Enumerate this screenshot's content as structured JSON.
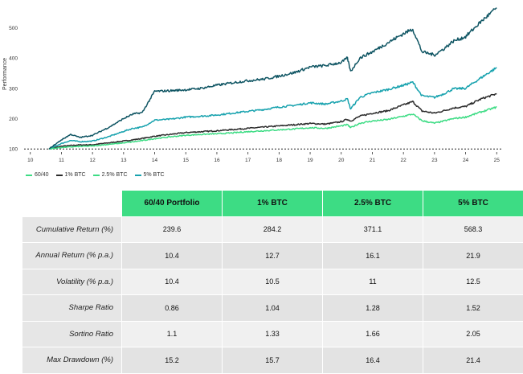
{
  "colors": {
    "header_bg": "#3ddc84",
    "row_odd_bg": "#f0f0f0",
    "row_even_bg": "#e3e3e3",
    "label_bg": "#e6e6e6",
    "baseline": "#222222"
  },
  "chart_data": {
    "type": "line",
    "ylabel": "Performance",
    "xlabel": "",
    "x_ticks": [
      "10",
      "11",
      "12",
      "13",
      "14",
      "15",
      "16",
      "17",
      "18",
      "19",
      "20",
      "21",
      "22",
      "23",
      "24",
      "25"
    ],
    "y_ticks": [
      100,
      200,
      300,
      400,
      500
    ],
    "xlim": [
      9.8,
      25.2
    ],
    "ylim": [
      90,
      575
    ],
    "baseline": 100,
    "grid": false,
    "legend_position": "bottom-left",
    "series": [
      {
        "name": "60/40",
        "color": "#2b2b2b",
        "points": [
          [
            10.6,
            100
          ],
          [
            11,
            109
          ],
          [
            11.5,
            113
          ],
          [
            12,
            114
          ],
          [
            12.5,
            120
          ],
          [
            13,
            126
          ],
          [
            13.5,
            133
          ],
          [
            14,
            142
          ],
          [
            14.5,
            148
          ],
          [
            15,
            154
          ],
          [
            15.5,
            157
          ],
          [
            16,
            160
          ],
          [
            16.5,
            164
          ],
          [
            17,
            168
          ],
          [
            17.5,
            172
          ],
          [
            18,
            176
          ],
          [
            18.5,
            180
          ],
          [
            19,
            184
          ],
          [
            19.5,
            182
          ],
          [
            20,
            190
          ],
          [
            20.2,
            198
          ],
          [
            20.3,
            192
          ],
          [
            20.6,
            208
          ],
          [
            21,
            218
          ],
          [
            21.5,
            226
          ],
          [
            22,
            245
          ],
          [
            22.3,
            256
          ],
          [
            22.6,
            225
          ],
          [
            23,
            218
          ],
          [
            23.3,
            226
          ],
          [
            23.6,
            235
          ],
          [
            24,
            240
          ],
          [
            24.5,
            265
          ],
          [
            25,
            282
          ]
        ]
      },
      {
        "name": "1% BTC",
        "color": "#17a2ae",
        "points": [
          [
            10.6,
            100
          ],
          [
            11,
            118
          ],
          [
            11.3,
            128
          ],
          [
            11.6,
            124
          ],
          [
            12,
            126
          ],
          [
            12.5,
            140
          ],
          [
            13,
            158
          ],
          [
            13.3,
            168
          ],
          [
            13.6,
            172
          ],
          [
            14,
            195
          ],
          [
            14.5,
            198
          ],
          [
            15,
            205
          ],
          [
            15.5,
            208
          ],
          [
            16,
            212
          ],
          [
            16.5,
            218
          ],
          [
            17,
            224
          ],
          [
            17.5,
            230
          ],
          [
            18,
            238
          ],
          [
            18.5,
            244
          ],
          [
            19,
            252
          ],
          [
            19.5,
            248
          ],
          [
            20,
            258
          ],
          [
            20.2,
            265
          ],
          [
            20.3,
            232
          ],
          [
            20.6,
            270
          ],
          [
            21,
            285
          ],
          [
            21.5,
            296
          ],
          [
            22,
            310
          ],
          [
            22.3,
            320
          ],
          [
            22.6,
            275
          ],
          [
            23,
            270
          ],
          [
            23.3,
            282
          ],
          [
            23.6,
            298
          ],
          [
            24,
            300
          ],
          [
            24.5,
            335
          ],
          [
            25,
            368
          ]
        ]
      },
      {
        "name": "2.5% BTC",
        "color": "#3ddc84",
        "points": [
          [
            10.6,
            100
          ],
          [
            11,
            105
          ],
          [
            11.5,
            108
          ],
          [
            12,
            110
          ],
          [
            12.5,
            115
          ],
          [
            13,
            120
          ],
          [
            13.5,
            126
          ],
          [
            14,
            134
          ],
          [
            14.5,
            140
          ],
          [
            15,
            145
          ],
          [
            15.5,
            148
          ],
          [
            16,
            150
          ],
          [
            16.5,
            153
          ],
          [
            17,
            157
          ],
          [
            17.5,
            160
          ],
          [
            18,
            163
          ],
          [
            18.5,
            166
          ],
          [
            19,
            170
          ],
          [
            19.5,
            168
          ],
          [
            20,
            176
          ],
          [
            20.2,
            180
          ],
          [
            20.3,
            170
          ],
          [
            20.6,
            185
          ],
          [
            21,
            192
          ],
          [
            21.5,
            197
          ],
          [
            22,
            208
          ],
          [
            22.3,
            215
          ],
          [
            22.6,
            193
          ],
          [
            23,
            185
          ],
          [
            23.3,
            192
          ],
          [
            23.6,
            200
          ],
          [
            24,
            205
          ],
          [
            24.5,
            222
          ],
          [
            25,
            238
          ]
        ]
      },
      {
        "name": "5% BTC",
        "color": "#0f5563",
        "points": [
          [
            10.6,
            100
          ],
          [
            11,
            130
          ],
          [
            11.3,
            148
          ],
          [
            11.6,
            138
          ],
          [
            12,
            145
          ],
          [
            12.5,
            170
          ],
          [
            13,
            200
          ],
          [
            13.3,
            215
          ],
          [
            13.6,
            220
          ],
          [
            13.8,
            255
          ],
          [
            14,
            290
          ],
          [
            14.5,
            292
          ],
          [
            15,
            295
          ],
          [
            15.5,
            300
          ],
          [
            16,
            310
          ],
          [
            16.5,
            318
          ],
          [
            17,
            325
          ],
          [
            17.5,
            330
          ],
          [
            18,
            340
          ],
          [
            18.5,
            352
          ],
          [
            19,
            370
          ],
          [
            19.5,
            375
          ],
          [
            20,
            385
          ],
          [
            20.2,
            400
          ],
          [
            20.3,
            355
          ],
          [
            20.6,
            400
          ],
          [
            21,
            420
          ],
          [
            21.5,
            450
          ],
          [
            22,
            480
          ],
          [
            22.3,
            495
          ],
          [
            22.6,
            420
          ],
          [
            23,
            410
          ],
          [
            23.3,
            430
          ],
          [
            23.6,
            455
          ],
          [
            24,
            470
          ],
          [
            24.5,
            520
          ],
          [
            25,
            565
          ]
        ]
      }
    ]
  },
  "legend": {
    "items": [
      {
        "label": "60/40",
        "color": "#3ddc84"
      },
      {
        "label": "1% BTC",
        "color": "#2b2b2b"
      },
      {
        "label": "2.5% BTC",
        "color": "#3ddc84"
      },
      {
        "label": "5% BTC",
        "color": "#17a2ae"
      }
    ]
  },
  "table": {
    "headers": [
      "60/40 Portfolio",
      "1% BTC",
      "2.5% BTC",
      "5% BTC"
    ],
    "rows": [
      {
        "label": "Cumulative Return (%)",
        "values": [
          "239.6",
          "284.2",
          "371.1",
          "568.3"
        ]
      },
      {
        "label": "Annual Return (% p.a.)",
        "values": [
          "10.4",
          "12.7",
          "16.1",
          "21.9"
        ]
      },
      {
        "label": "Volatility (% p.a.)",
        "values": [
          "10.4",
          "10.5",
          "11",
          "12.5"
        ]
      },
      {
        "label": "Sharpe Ratio",
        "values": [
          "0.86",
          "1.04",
          "1.28",
          "1.52"
        ]
      },
      {
        "label": "Sortino Ratio",
        "values": [
          "1.1",
          "1.33",
          "1.66",
          "2.05"
        ]
      },
      {
        "label": "Max Drawdown (%)",
        "values": [
          "15.2",
          "15.7",
          "16.4",
          "21.4"
        ]
      }
    ]
  }
}
